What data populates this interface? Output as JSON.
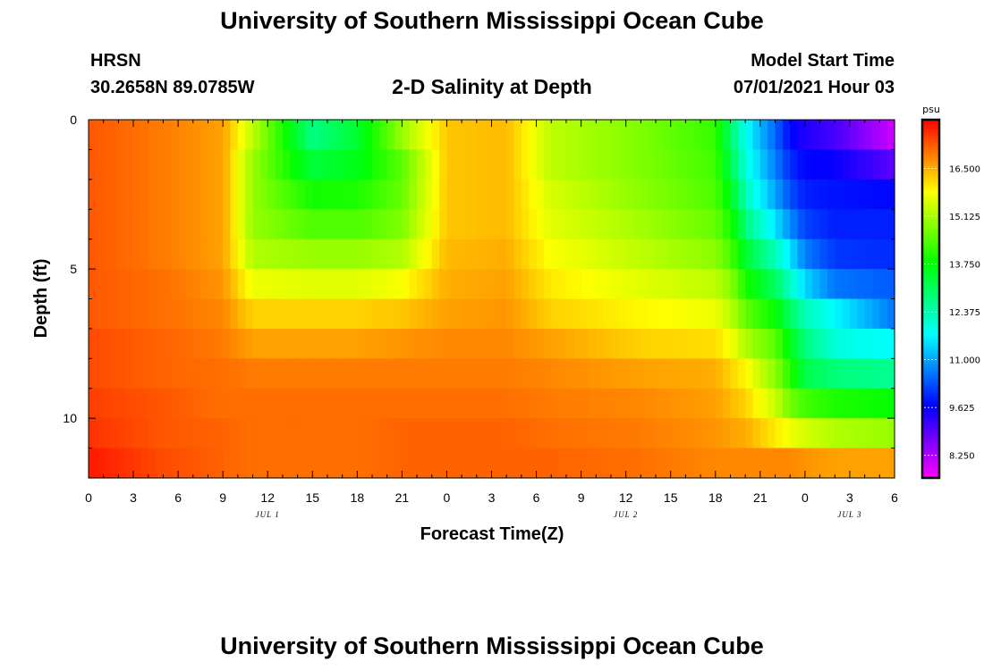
{
  "header": {
    "title": "University of Southern Mississippi Ocean Cube",
    "station": "HRSN",
    "coordinates": "30.2658N  89.0785W",
    "subtitle": "2-D Salinity at Depth",
    "model_start_label": "Model Start Time",
    "model_start_value": "07/01/2021 Hour 03"
  },
  "footer": {
    "title": "University of Southern Mississippi Ocean Cube"
  },
  "chart_data": {
    "type": "heatmap",
    "title": "2-D Salinity at Depth",
    "xlabel": "Forecast Time(Z)",
    "ylabel": "Depth (ft)",
    "x_range_hours": [
      0,
      54
    ],
    "y_range_ft": [
      0,
      12
    ],
    "x_ticks": [
      {
        "hour": 0,
        "label": "0"
      },
      {
        "hour": 3,
        "label": "3"
      },
      {
        "hour": 6,
        "label": "6"
      },
      {
        "hour": 9,
        "label": "9"
      },
      {
        "hour": 12,
        "label": "12"
      },
      {
        "hour": 15,
        "label": "15"
      },
      {
        "hour": 18,
        "label": "18"
      },
      {
        "hour": 21,
        "label": "21"
      },
      {
        "hour": 24,
        "label": "0"
      },
      {
        "hour": 27,
        "label": "3"
      },
      {
        "hour": 30,
        "label": "6"
      },
      {
        "hour": 33,
        "label": "9"
      },
      {
        "hour": 36,
        "label": "12"
      },
      {
        "hour": 39,
        "label": "15"
      },
      {
        "hour": 42,
        "label": "18"
      },
      {
        "hour": 45,
        "label": "21"
      },
      {
        "hour": 48,
        "label": "0"
      },
      {
        "hour": 51,
        "label": "3"
      },
      {
        "hour": 54,
        "label": "6"
      }
    ],
    "date_labels": [
      {
        "hour": 12,
        "label": "JUL 1"
      },
      {
        "hour": 36,
        "label": "JUL 2"
      },
      {
        "hour": 51,
        "label": "JUL 3"
      }
    ],
    "y_ticks": [
      {
        "depth": 0,
        "label": "0"
      },
      {
        "depth": 5,
        "label": "5"
      },
      {
        "depth": 10,
        "label": "10"
      }
    ],
    "colorbar": {
      "unit": "psu",
      "min": 7.6,
      "max": 17.9,
      "ticks": [
        "16.500",
        "15.125",
        "13.750",
        "12.375",
        "11.000",
        "9.625",
        "8.250"
      ],
      "tick_values": [
        16.5,
        15.125,
        13.75,
        12.375,
        11.0,
        9.625,
        8.25
      ]
    },
    "columns_per_hour": 2,
    "depth_levels_ft": [
      0.5,
      1.5,
      2.5,
      3.5,
      4.5,
      5.5,
      6.5,
      7.5,
      8.5,
      9.5,
      10.5,
      11.5
    ],
    "salinity_keypoints_psu": [
      {
        "hour": 0,
        "levels": [
          17.2,
          17.2,
          17.2,
          17.2,
          17.2,
          17.2,
          17.2,
          17.3,
          17.3,
          17.4,
          17.5,
          17.7
        ]
      },
      {
        "hour": 5,
        "levels": [
          16.9,
          16.9,
          16.9,
          16.9,
          16.9,
          17.0,
          17.0,
          17.1,
          17.1,
          17.2,
          17.2,
          17.3
        ]
      },
      {
        "hour": 9,
        "levels": [
          16.6,
          16.6,
          16.6,
          16.6,
          16.6,
          16.7,
          16.8,
          16.9,
          17.0,
          17.0,
          17.1,
          17.1
        ]
      },
      {
        "hour": 11,
        "levels": [
          15.3,
          15.0,
          15.0,
          15.0,
          15.2,
          15.7,
          16.2,
          16.6,
          16.9,
          17.0,
          17.0,
          17.0
        ]
      },
      {
        "hour": 15,
        "levels": [
          12.7,
          13.3,
          13.9,
          14.4,
          15.0,
          15.6,
          16.2,
          16.6,
          16.9,
          17.0,
          17.0,
          17.0
        ]
      },
      {
        "hour": 18,
        "levels": [
          13.4,
          13.6,
          14.0,
          14.4,
          15.0,
          15.6,
          16.2,
          16.6,
          16.9,
          17.0,
          17.0,
          17.0
        ]
      },
      {
        "hour": 21,
        "levels": [
          15.0,
          14.5,
          14.6,
          14.8,
          15.2,
          15.8,
          16.3,
          16.7,
          16.9,
          17.0,
          17.1,
          17.1
        ]
      },
      {
        "hour": 24,
        "levels": [
          16.3,
          16.3,
          16.3,
          16.3,
          16.4,
          16.5,
          16.6,
          16.8,
          16.9,
          17.0,
          17.1,
          17.1
        ]
      },
      {
        "hour": 28,
        "levels": [
          16.4,
          16.4,
          16.4,
          16.4,
          16.5,
          16.6,
          16.7,
          16.8,
          16.9,
          17.0,
          17.1,
          17.1
        ]
      },
      {
        "hour": 31,
        "levels": [
          15.3,
          15.3,
          15.5,
          15.6,
          15.8,
          16.0,
          16.2,
          16.6,
          16.8,
          16.9,
          17.0,
          17.1
        ]
      },
      {
        "hour": 37,
        "levels": [
          14.8,
          14.8,
          14.9,
          15.1,
          15.3,
          15.6,
          15.9,
          16.2,
          16.6,
          16.8,
          16.9,
          17.0
        ]
      },
      {
        "hour": 42,
        "levels": [
          14.2,
          14.3,
          14.4,
          14.6,
          14.9,
          15.3,
          15.7,
          16.1,
          16.5,
          16.6,
          16.7,
          16.8
        ]
      },
      {
        "hour": 43,
        "levels": [
          13.0,
          13.2,
          13.6,
          14.0,
          14.4,
          14.9,
          15.3,
          15.8,
          16.2,
          16.4,
          16.6,
          16.8
        ]
      },
      {
        "hour": 44,
        "levels": [
          11.8,
          12.0,
          12.3,
          12.8,
          13.4,
          14.0,
          14.6,
          15.2,
          15.9,
          16.2,
          16.5,
          16.8
        ]
      },
      {
        "hour": 46,
        "levels": [
          10.5,
          10.7,
          11.0,
          11.5,
          12.3,
          13.0,
          13.8,
          14.5,
          14.9,
          15.4,
          16.0,
          16.8
        ]
      },
      {
        "hour": 47,
        "levels": [
          9.7,
          10.0,
          10.3,
          10.8,
          11.5,
          12.2,
          13.0,
          13.6,
          14.1,
          14.7,
          15.7,
          16.8
        ]
      },
      {
        "hour": 48,
        "levels": [
          9.4,
          9.7,
          9.9,
          10.2,
          10.7,
          11.4,
          12.3,
          12.8,
          13.2,
          14.3,
          15.5,
          16.7
        ]
      },
      {
        "hour": 50,
        "levels": [
          9.1,
          9.6,
          9.8,
          9.9,
          10.1,
          10.6,
          11.7,
          12.0,
          12.8,
          14.0,
          15.2,
          16.6
        ]
      },
      {
        "hour": 54,
        "levels": [
          8.0,
          8.9,
          9.7,
          9.9,
          10.0,
          10.4,
          10.6,
          11.7,
          12.6,
          13.8,
          15.0,
          16.6
        ]
      }
    ]
  }
}
